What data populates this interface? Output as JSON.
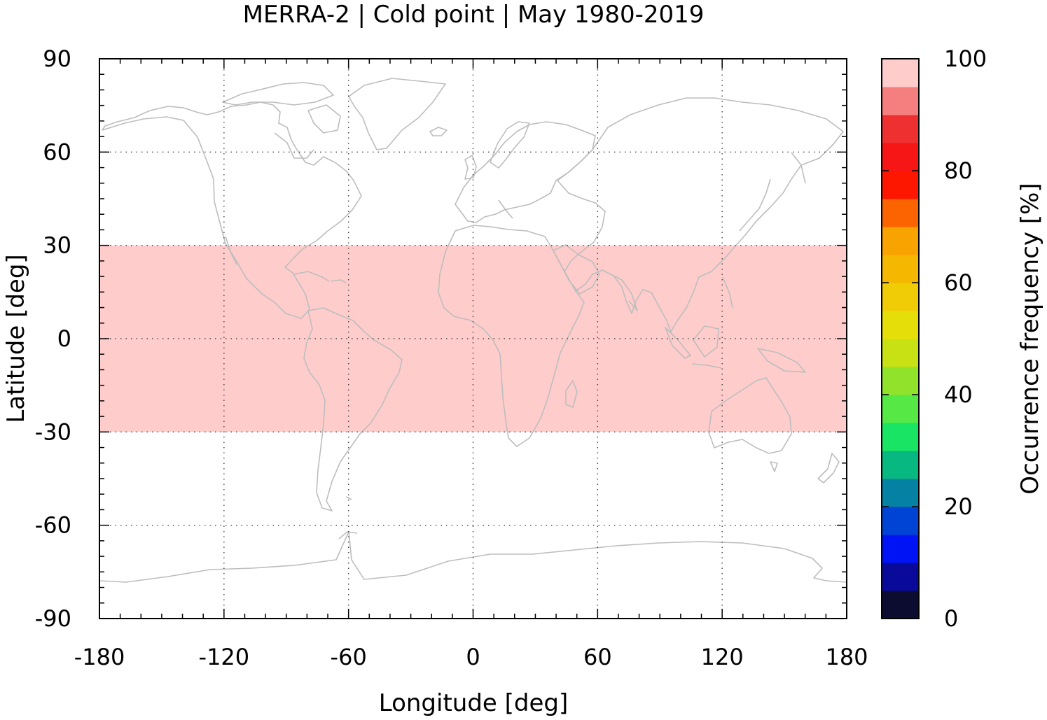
{
  "chart_data": {
    "type": "heatmap",
    "title": "MERRA-2 | Cold point | May 1980-2019",
    "xlabel": "Longitude [deg]",
    "ylabel": "Latitude [deg]",
    "xlim": [
      -180,
      180
    ],
    "ylim": [
      -90,
      90
    ],
    "x_ticks": [
      "-180",
      "-120",
      "-60",
      "0",
      "60",
      "120",
      "180"
    ],
    "x_tick_values": [
      -180,
      -120,
      -60,
      0,
      60,
      120,
      180
    ],
    "y_ticks": [
      "90",
      "60",
      "30",
      "0",
      "-30",
      "-60",
      "-90"
    ],
    "y_tick_values": [
      90,
      60,
      30,
      0,
      -30,
      -60,
      -90
    ],
    "grid": true,
    "basemap": "world coastlines (gray)",
    "region": {
      "lon_range": [
        -180,
        180
      ],
      "lat_range": [
        -30,
        30
      ],
      "value": 100,
      "color": "#ffcccc"
    },
    "colorbar": {
      "label": "Occurrence frequency [%]",
      "range": [
        0,
        100
      ],
      "ticks": [
        "0",
        "20",
        "40",
        "60",
        "80",
        "100"
      ],
      "tick_values": [
        0,
        20,
        40,
        60,
        80,
        100
      ],
      "colors": [
        "#0c0c30",
        "#0a0a9a",
        "#0013f5",
        "#0044d6",
        "#0581a3",
        "#07b881",
        "#1ae464",
        "#56e844",
        "#91e22b",
        "#c8e114",
        "#e6de09",
        "#efcc05",
        "#f5b700",
        "#f8a300",
        "#fb6400",
        "#fd1700",
        "#f71616",
        "#ef3030",
        "#f57f7f",
        "#ffcccc"
      ]
    }
  }
}
